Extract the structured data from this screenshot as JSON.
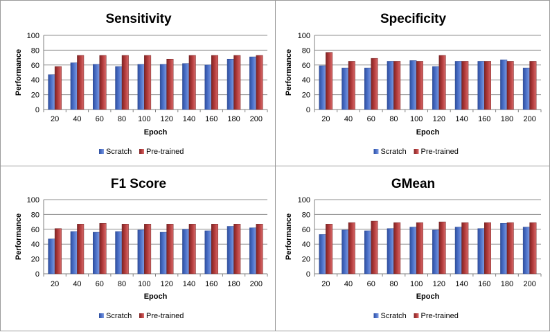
{
  "colors": {
    "scratch": "#4a6fc8",
    "pretrained": "#b03a3a",
    "grid": "#8c8c8c",
    "axis": "#7f7f7f"
  },
  "chart_data": [
    {
      "type": "bar",
      "title": "Sensitivity",
      "xlabel": "Epoch",
      "ylabel": "Performance",
      "ylim": [
        0,
        100
      ],
      "yticks": [
        "0",
        "20",
        "40",
        "60",
        "80",
        "100"
      ],
      "categories": [
        "20",
        "40",
        "60",
        "80",
        "100",
        "120",
        "140",
        "160",
        "180",
        "200"
      ],
      "series": [
        {
          "name": "Scratch",
          "values": [
            47,
            63,
            61,
            58,
            61,
            61,
            62,
            60,
            68,
            71
          ]
        },
        {
          "name": "Pre-trained",
          "values": [
            58,
            73,
            73,
            73,
            73,
            68,
            73,
            73,
            73,
            73
          ]
        }
      ],
      "legend": "bottom"
    },
    {
      "type": "bar",
      "title": "Specificity",
      "xlabel": "Epoch",
      "ylabel": "Performance",
      "ylim": [
        0,
        100
      ],
      "yticks": [
        "0",
        "20",
        "40",
        "60",
        "80",
        "100"
      ],
      "categories": [
        "20",
        "40",
        "60",
        "80",
        "100",
        "120",
        "140",
        "160",
        "180",
        "200"
      ],
      "series": [
        {
          "name": "Scratch",
          "values": [
            59,
            56,
            56,
            65,
            66,
            58,
            65,
            65,
            67,
            56
          ]
        },
        {
          "name": "Pre-trained",
          "values": [
            77,
            65,
            69,
            65,
            65,
            73,
            65,
            65,
            65,
            65
          ]
        }
      ],
      "legend": "bottom"
    },
    {
      "type": "bar",
      "title": "F1 Score",
      "xlabel": "Epoch",
      "ylabel": "Performance",
      "ylim": [
        0,
        100
      ],
      "yticks": [
        "0",
        "20",
        "40",
        "60",
        "80",
        "100"
      ],
      "categories": [
        "20",
        "40",
        "60",
        "80",
        "100",
        "120",
        "140",
        "160",
        "180",
        "200"
      ],
      "series": [
        {
          "name": "Scratch",
          "values": [
            47,
            57,
            56,
            57,
            59,
            56,
            60,
            58,
            64,
            62
          ]
        },
        {
          "name": "Pre-trained",
          "values": [
            61,
            67,
            68,
            67,
            67,
            67,
            67,
            67,
            67,
            67
          ]
        }
      ],
      "legend": "bottom"
    },
    {
      "type": "bar",
      "title": "GMean",
      "xlabel": "Epoch",
      "ylabel": "Performance",
      "ylim": [
        0,
        100
      ],
      "yticks": [
        "0",
        "20",
        "40",
        "60",
        "80",
        "100"
      ],
      "categories": [
        "20",
        "40",
        "60",
        "80",
        "100",
        "120",
        "140",
        "160",
        "180",
        "200"
      ],
      "series": [
        {
          "name": "Scratch",
          "values": [
            53,
            59,
            58,
            61,
            63,
            59,
            63,
            61,
            68,
            63
          ]
        },
        {
          "name": "Pre-trained",
          "values": [
            67,
            69,
            71,
            69,
            69,
            70,
            69,
            69,
            69,
            69
          ]
        }
      ],
      "legend": "bottom"
    }
  ]
}
